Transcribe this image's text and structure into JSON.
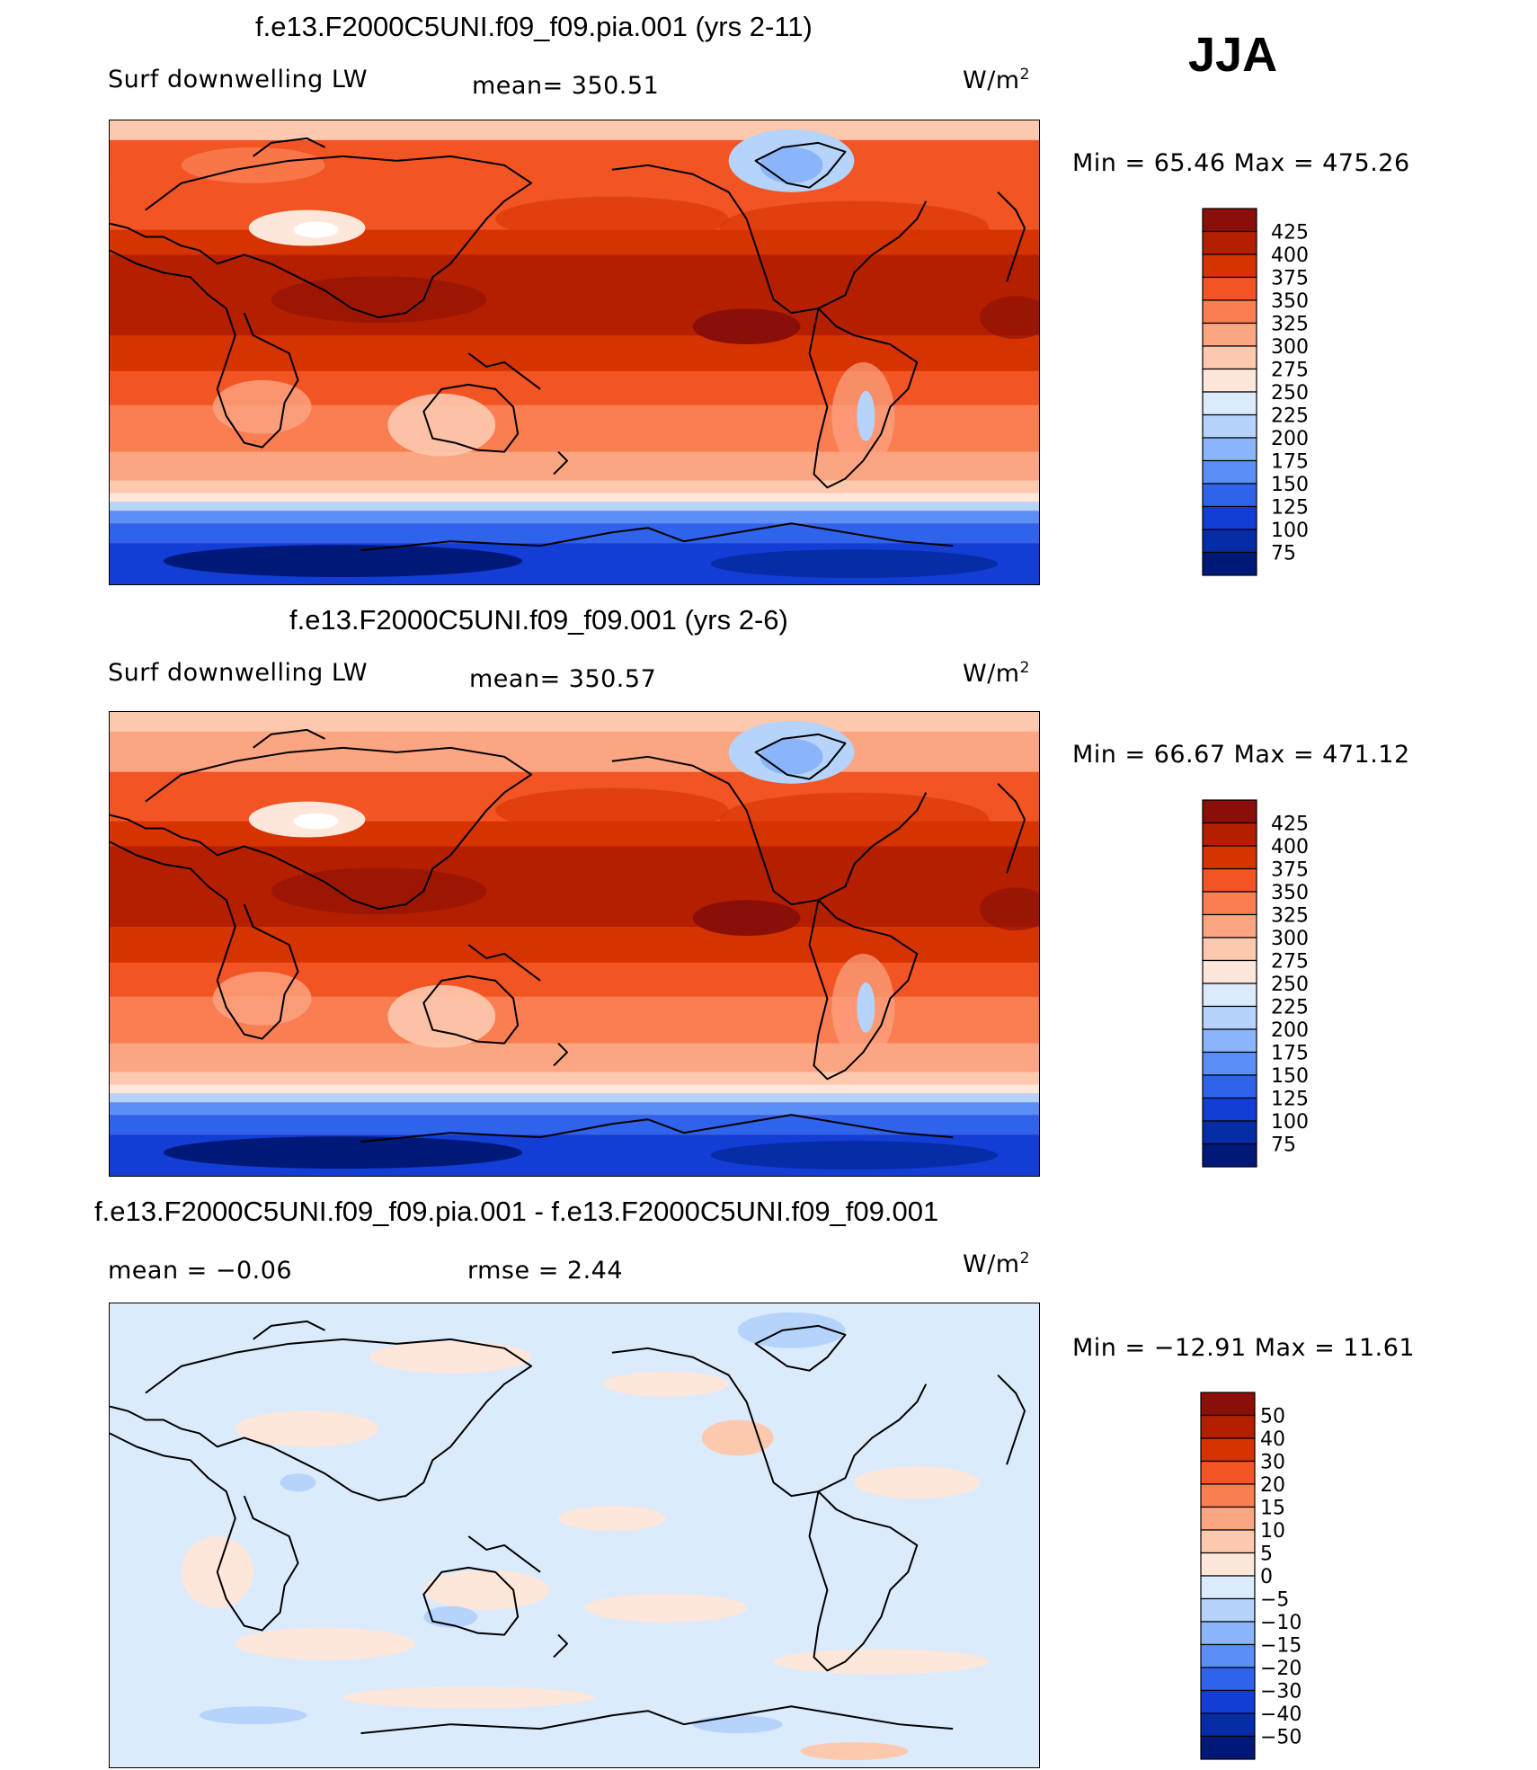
{
  "season": "JJA",
  "panels": [
    {
      "title": "f.e13.F2000C5UNI.f09_f09.pia.001 (yrs 2-11)",
      "left_label": "Surf downwelling LW",
      "center_label": "mean= 350.51",
      "units": "W/m",
      "units_exp": "2",
      "minmax": "Min =   65.46 Max = 475.26",
      "legend_levels": [
        "425",
        "400",
        "375",
        "350",
        "325",
        "300",
        "275",
        "250",
        "225",
        "200",
        "175",
        "150",
        "125",
        "100",
        "75"
      ],
      "legend_colors": [
        "#8a0f08",
        "#b41f00",
        "#d63300",
        "#f25424",
        "#fa7e52",
        "#fca583",
        "#fdc9ae",
        "#fee7da",
        "#dbebfc",
        "#b5d3fb",
        "#8ab5fa",
        "#5b8ef6",
        "#2f63ec",
        "#123ed6",
        "#072ca8",
        "#001878"
      ]
    },
    {
      "title": "f.e13.F2000C5UNI.f09_f09.001 (yrs 2-6)",
      "left_label": "Surf downwelling LW",
      "center_label": "mean= 350.57",
      "units": "W/m",
      "units_exp": "2",
      "minmax": "Min =   66.67 Max = 471.12",
      "legend_levels": [
        "425",
        "400",
        "375",
        "350",
        "325",
        "300",
        "275",
        "250",
        "225",
        "200",
        "175",
        "150",
        "125",
        "100",
        "75"
      ],
      "legend_colors": [
        "#8a0f08",
        "#b41f00",
        "#d63300",
        "#f25424",
        "#fa7e52",
        "#fca583",
        "#fdc9ae",
        "#fee7da",
        "#dbebfc",
        "#b5d3fb",
        "#8ab5fa",
        "#5b8ef6",
        "#2f63ec",
        "#123ed6",
        "#072ca8",
        "#001878"
      ]
    },
    {
      "title": "f.e13.F2000C5UNI.f09_f09.pia.001 - f.e13.F2000C5UNI.f09_f09.001",
      "left_label": "mean =   −0.06",
      "center_label": "rmse =    2.44",
      "units": "W/m",
      "units_exp": "2",
      "minmax": "Min = −12.91 Max =   11.61",
      "legend_levels": [
        "50",
        "40",
        "30",
        "20",
        "15",
        "10",
        "5",
        "0",
        "−5",
        "−10",
        "−15",
        "−20",
        "−30",
        "−40",
        "−50"
      ],
      "legend_colors": [
        "#8a0f08",
        "#b41f00",
        "#d63300",
        "#f25424",
        "#fa7e52",
        "#fca583",
        "#fdc9ae",
        "#fee7da",
        "#dbebfc",
        "#b5d3fb",
        "#8ab5fa",
        "#5b8ef6",
        "#2f63ec",
        "#123ed6",
        "#072ca8",
        "#001878"
      ]
    }
  ]
}
